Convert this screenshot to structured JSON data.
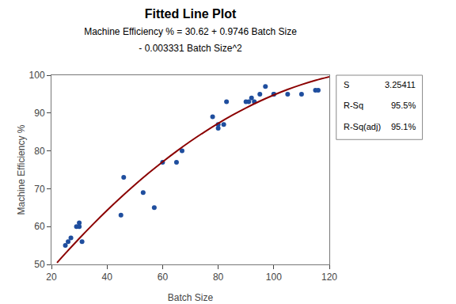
{
  "chart_data": {
    "type": "scatter",
    "title": "Fitted Line Plot",
    "subtitle": [
      "Machine Efficiency % = 30.62 + 0.9746 Batch Size",
      "- 0.003331 Batch Size^2"
    ],
    "xlabel": "Batch Size",
    "ylabel": "Machine Efficiency %",
    "xlim": [
      20,
      120
    ],
    "ylim": [
      50,
      100
    ],
    "xticks": [
      20,
      40,
      60,
      80,
      100,
      120
    ],
    "yticks": [
      50,
      60,
      70,
      80,
      90,
      100
    ],
    "grid": false,
    "series": [
      {
        "type": "scatter",
        "marker": "circle",
        "color": "#1F4E9E",
        "x": [
          25,
          26,
          27,
          29,
          30,
          30,
          31,
          45,
          46,
          53,
          57,
          60,
          65,
          67,
          78,
          80,
          80,
          82,
          83,
          90,
          91,
          92,
          93,
          95,
          97,
          100,
          100,
          105,
          110,
          115,
          116
        ],
        "values": [
          55,
          56,
          57,
          60,
          60,
          61,
          56,
          63,
          73,
          69,
          65,
          77,
          77,
          80,
          89,
          86,
          87,
          87,
          93,
          93,
          93,
          94,
          93,
          95,
          97,
          95,
          95,
          95,
          95,
          96,
          96
        ]
      },
      {
        "type": "line",
        "line_style": "solid",
        "color": "#8B0000",
        "x": [
          22,
          25,
          30,
          35,
          40,
          45,
          50,
          55,
          60,
          65,
          70,
          75,
          80,
          85,
          90,
          95,
          100,
          105,
          110,
          115,
          120
        ],
        "values": [
          50.448996,
          52.903125,
          56.8601,
          60.650525,
          64.2744,
          67.731725,
          71.0225,
          74.146725,
          77.1044,
          79.895525,
          82.5201,
          84.978125,
          87.2696,
          89.394525,
          91.3529,
          93.144725,
          94.77,
          96.228725,
          97.5209,
          98.646525,
          99.6056
        ]
      }
    ],
    "stats": [
      {
        "label": "S",
        "text": "3.25411"
      },
      {
        "label": "R-Sq",
        "text": "95.5%"
      },
      {
        "label": "R-Sq(adj)",
        "text": "95.1%"
      }
    ]
  }
}
